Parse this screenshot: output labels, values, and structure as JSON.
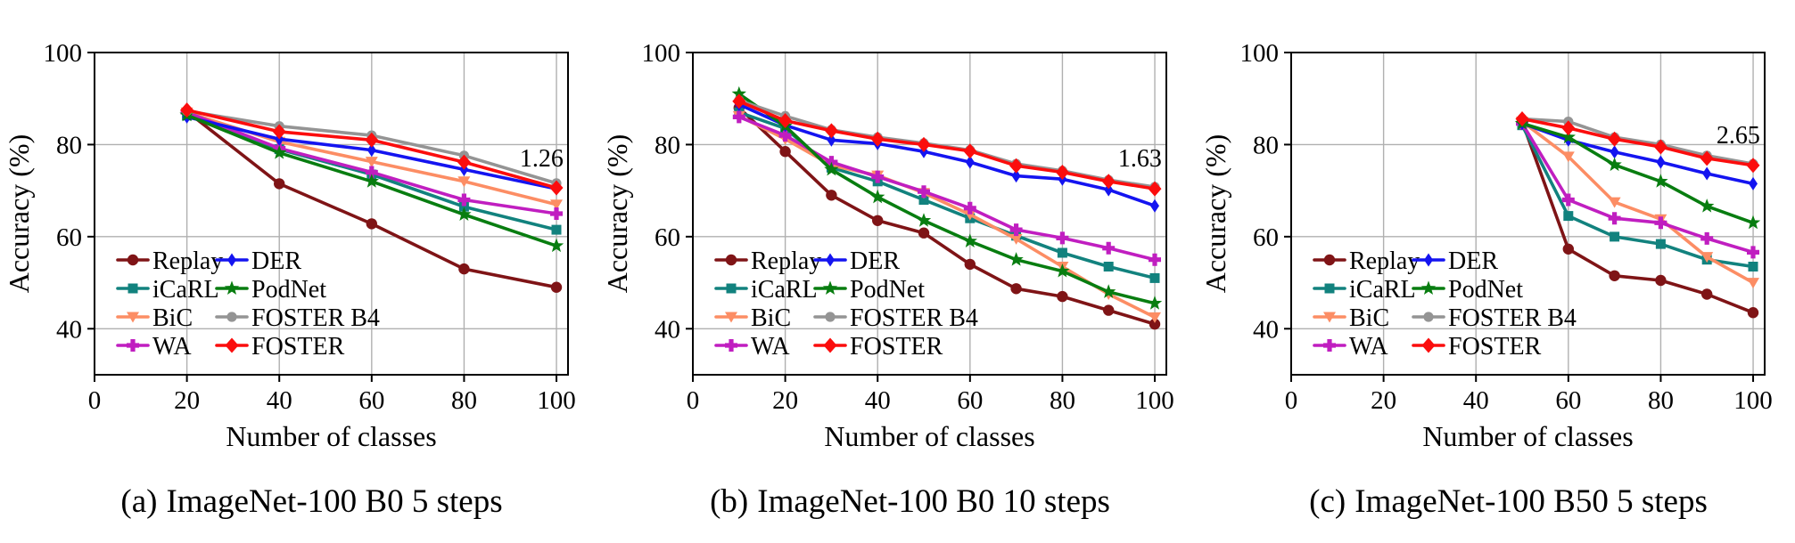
{
  "figure": {
    "background": "#ffffff",
    "grid_color": "#b0b0b0",
    "spine_color": "#000000",
    "text_color": "#000000"
  },
  "series_styles": [
    {
      "name": "Replay",
      "color": "#7f1416",
      "marker": "circle"
    },
    {
      "name": "iCaRL",
      "color": "#12827e",
      "marker": "square"
    },
    {
      "name": "BiC",
      "color": "#fc8d64",
      "marker": "triangle-down"
    },
    {
      "name": "WA",
      "color": "#c01ec0",
      "marker": "plus"
    },
    {
      "name": "DER",
      "color": "#1414f0",
      "marker": "diamond"
    },
    {
      "name": "PodNet",
      "color": "#087d10",
      "marker": "star"
    },
    {
      "name": "FOSTER B4",
      "color": "#949494",
      "marker": "circle-small"
    },
    {
      "name": "FOSTER",
      "color": "#fb0d0d",
      "marker": "diamond-large"
    }
  ],
  "legend": {
    "columns": 2,
    "rows": 4,
    "order": [
      "Replay",
      "iCaRL",
      "BiC",
      "WA",
      "DER",
      "PodNet",
      "FOSTER B4",
      "FOSTER"
    ]
  },
  "chart_data": [
    {
      "type": "line",
      "caption_index": "(a)",
      "caption_label": "ImageNet-100 B0 5 steps",
      "xlabel": "Number of classes",
      "ylabel": "Accuracy (%)",
      "xlim": [
        0,
        102.5
      ],
      "ylim": [
        30,
        100
      ],
      "xticks": [
        0,
        20,
        40,
        60,
        80,
        100
      ],
      "yticks": [
        40,
        60,
        80,
        100
      ],
      "grid": true,
      "legend_position": "lower-left",
      "annotation": {
        "text": "1.26",
        "x": 101.5,
        "y": 77.0
      },
      "x": [
        20,
        40,
        60,
        80,
        100
      ],
      "series": [
        {
          "name": "Replay",
          "values": [
            87.2,
            71.5,
            62.8,
            53.0,
            49.0
          ]
        },
        {
          "name": "iCaRL",
          "values": [
            86.3,
            79.0,
            73.5,
            66.5,
            61.5
          ]
        },
        {
          "name": "BiC",
          "values": [
            87.0,
            80.6,
            76.3,
            72.0,
            67.0
          ]
        },
        {
          "name": "WA",
          "values": [
            87.0,
            79.2,
            74.0,
            68.0,
            65.0
          ]
        },
        {
          "name": "DER",
          "values": [
            86.0,
            81.2,
            78.8,
            74.6,
            70.4
          ]
        },
        {
          "name": "PodNet",
          "values": [
            86.4,
            78.2,
            72.0,
            64.8,
            58.0
          ]
        },
        {
          "name": "FOSTER B4",
          "values": [
            87.3,
            84.0,
            82.0,
            77.6,
            71.6
          ]
        },
        {
          "name": "FOSTER",
          "values": [
            87.5,
            82.8,
            81.0,
            76.2,
            70.6
          ]
        }
      ]
    },
    {
      "type": "line",
      "caption_index": "(b)",
      "caption_label": "ImageNet-100 B0 10 steps",
      "xlabel": "Number of classes",
      "ylabel": "Accuracy (%)",
      "xlim": [
        0,
        102.5
      ],
      "ylim": [
        30,
        100
      ],
      "xticks": [
        0,
        20,
        40,
        60,
        80,
        100
      ],
      "yticks": [
        40,
        60,
        80,
        100
      ],
      "grid": true,
      "legend_position": "lower-left",
      "annotation": {
        "text": "1.63",
        "x": 101.5,
        "y": 77.0
      },
      "x": [
        10,
        20,
        30,
        40,
        50,
        60,
        70,
        80,
        90,
        100
      ],
      "series": [
        {
          "name": "Replay",
          "values": [
            88.0,
            78.5,
            69.0,
            63.5,
            60.8,
            54.0,
            48.7,
            47.0,
            44.0,
            41.0
          ]
        },
        {
          "name": "iCaRL",
          "values": [
            87.0,
            83.5,
            75.0,
            72.0,
            68.0,
            64.0,
            60.2,
            56.5,
            53.5,
            51.0
          ]
        },
        {
          "name": "BiC",
          "values": [
            86.2,
            81.2,
            75.5,
            73.3,
            69.5,
            64.8,
            59.5,
            53.5,
            47.5,
            42.5
          ]
        },
        {
          "name": "WA",
          "values": [
            86.0,
            82.0,
            76.2,
            73.0,
            69.8,
            66.2,
            61.5,
            59.7,
            57.5,
            55.0
          ]
        },
        {
          "name": "DER",
          "values": [
            88.7,
            84.2,
            81.0,
            80.2,
            78.5,
            76.2,
            73.2,
            72.5,
            70.2,
            66.7
          ]
        },
        {
          "name": "PodNet",
          "values": [
            91.0,
            84.0,
            74.6,
            68.6,
            63.5,
            59.0,
            55.0,
            52.5,
            48.0,
            45.5
          ]
        },
        {
          "name": "FOSTER B4",
          "values": [
            89.6,
            86.2,
            83.2,
            81.6,
            80.3,
            78.8,
            75.8,
            74.3,
            72.3,
            70.8
          ]
        },
        {
          "name": "FOSTER",
          "values": [
            89.4,
            85.2,
            83.0,
            81.2,
            80.0,
            78.6,
            75.4,
            74.0,
            72.0,
            70.4
          ]
        }
      ]
    },
    {
      "type": "line",
      "caption_index": "(c)",
      "caption_label": "ImageNet-100 B50 5 steps",
      "xlabel": "Number of classes",
      "ylabel": "Accuracy (%)",
      "xlim": [
        0,
        102.5
      ],
      "ylim": [
        30,
        100
      ],
      "xticks": [
        0,
        20,
        40,
        60,
        80,
        100
      ],
      "yticks": [
        40,
        60,
        80,
        100
      ],
      "grid": true,
      "legend_position": "lower-left",
      "annotation": {
        "text": "2.65",
        "x": 101.5,
        "y": 82.0
      },
      "x": [
        50,
        60,
        70,
        80,
        90,
        100
      ],
      "series": [
        {
          "name": "Replay",
          "values": [
            85.0,
            57.3,
            51.5,
            50.5,
            47.5,
            43.5
          ]
        },
        {
          "name": "iCaRL",
          "values": [
            84.2,
            64.5,
            60.0,
            58.4,
            55.0,
            53.5
          ]
        },
        {
          "name": "BiC",
          "values": [
            85.0,
            77.4,
            67.5,
            63.8,
            55.6,
            50.0
          ]
        },
        {
          "name": "WA",
          "values": [
            84.6,
            68.0,
            64.0,
            63.0,
            59.6,
            56.6
          ]
        },
        {
          "name": "DER",
          "values": [
            84.6,
            81.0,
            78.4,
            76.2,
            73.7,
            71.5
          ]
        },
        {
          "name": "PodNet",
          "values": [
            84.6,
            81.6,
            75.6,
            72.0,
            66.6,
            63.0
          ]
        },
        {
          "name": "FOSTER B4",
          "values": [
            85.6,
            85.0,
            81.6,
            80.0,
            77.6,
            75.8
          ]
        },
        {
          "name": "FOSTER",
          "values": [
            85.6,
            83.6,
            81.2,
            79.5,
            77.0,
            75.5
          ]
        }
      ]
    }
  ]
}
